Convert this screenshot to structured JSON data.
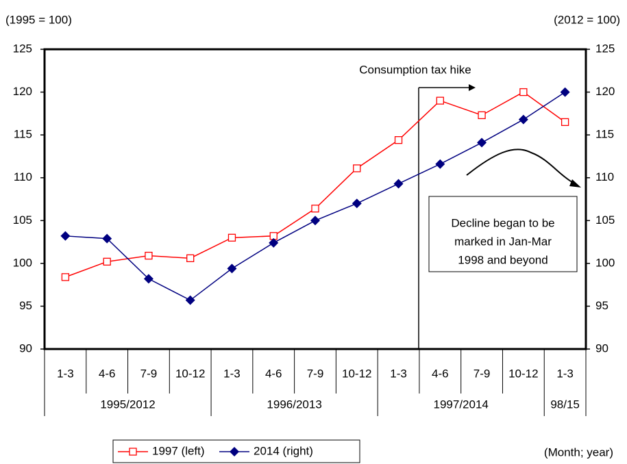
{
  "chart_data": {
    "type": "line",
    "left_axis_label": "(1995 = 100)",
    "right_axis_label": "(2012 = 100)",
    "x_axis_label": "(Month; year)",
    "categories": [
      "1-3",
      "4-6",
      "7-9",
      "10-12",
      "1-3",
      "4-6",
      "7-9",
      "10-12",
      "1-3",
      "4-6",
      "7-9",
      "10-12",
      "1-3"
    ],
    "groups": [
      {
        "label": "1995/2012",
        "count": 4
      },
      {
        "label": "1996/2013",
        "count": 4
      },
      {
        "label": "1997/2014",
        "count": 4
      },
      {
        "label": "98/15",
        "count": 1
      }
    ],
    "series": [
      {
        "name": "1997 (left)",
        "color": "#ff0000",
        "marker": "square",
        "axis": "y",
        "values": [
          98.4,
          100.2,
          100.9,
          100.6,
          103.0,
          103.2,
          106.4,
          111.1,
          114.4,
          119.0,
          117.3,
          120.0,
          116.5
        ]
      },
      {
        "name": "2014 (right)",
        "color": "#000080",
        "marker": "diamond",
        "axis": "y2",
        "values": [
          103.2,
          102.9,
          98.2,
          95.7,
          99.4,
          102.4,
          105.0,
          107.0,
          109.3,
          111.6,
          114.1,
          116.8,
          120.0
        ]
      }
    ],
    "ylim": [
      90,
      125
    ],
    "yticks": [
      90,
      95,
      100,
      105,
      110,
      115,
      120,
      125
    ],
    "y2lim": [
      90,
      125
    ],
    "y2ticks": [
      90,
      95,
      100,
      105,
      110,
      115,
      120,
      125
    ],
    "annotations": {
      "tax_hike": "Consumption tax hike",
      "decline": [
        "Decline began to be",
        "marked in Jan-Mar",
        "1998 and beyond"
      ]
    }
  }
}
